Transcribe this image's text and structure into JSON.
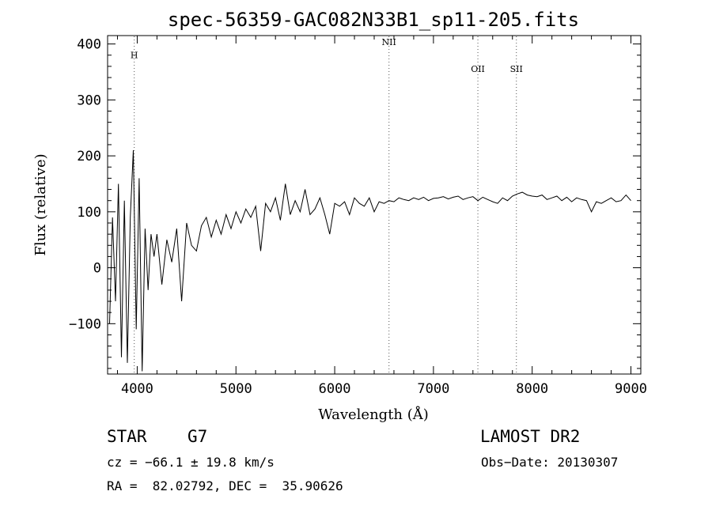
{
  "chart_data": {
    "type": "line",
    "title": "spec-56359-GAC082N33B1_sp11-205.fits",
    "xlabel": "Wavelength (Å)",
    "ylabel": "Flux (relative)",
    "xlim": [
      3700,
      9100
    ],
    "ylim": [
      -190,
      415
    ],
    "xticks": [
      4000,
      5000,
      6000,
      7000,
      8000,
      9000
    ],
    "yticks": [
      -100,
      0,
      100,
      200,
      300,
      400
    ],
    "ytick_labels": [
      "−100",
      "0",
      "100",
      "200",
      "300",
      "400"
    ],
    "grid": false,
    "series": [
      {
        "x": [
          3720,
          3750,
          3780,
          3810,
          3840,
          3870,
          3900,
          3930,
          3960,
          3990,
          4020,
          4050,
          4080,
          4110,
          4140,
          4170,
          4200,
          4250,
          4300,
          4350,
          4400,
          4450,
          4500,
          4550,
          4600,
          4650,
          4700,
          4750,
          4800,
          4850,
          4900,
          4950,
          5000,
          5050,
          5100,
          5150,
          5200,
          5250,
          5300,
          5350,
          5400,
          5450,
          5500,
          5550,
          5600,
          5650,
          5700,
          5750,
          5800,
          5850,
          5900,
          5950,
          6000,
          6050,
          6100,
          6150,
          6200,
          6250,
          6300,
          6350,
          6400,
          6450,
          6500,
          6550,
          6600,
          6650,
          6700,
          6750,
          6800,
          6850,
          6900,
          6950,
          7000,
          7050,
          7100,
          7150,
          7200,
          7250,
          7300,
          7350,
          7400,
          7450,
          7500,
          7550,
          7600,
          7650,
          7700,
          7750,
          7800,
          7850,
          7900,
          7950,
          8000,
          8050,
          8100,
          8150,
          8200,
          8250,
          8300,
          8350,
          8400,
          8450,
          8500,
          8550,
          8600,
          8650,
          8700,
          8750,
          8800,
          8850,
          8900,
          8950,
          9000
        ],
        "values": [
          -100,
          90,
          -60,
          150,
          -160,
          120,
          -170,
          90,
          210,
          -110,
          160,
          -185,
          70,
          -40,
          60,
          20,
          60,
          -30,
          50,
          10,
          70,
          -60,
          80,
          40,
          30,
          75,
          90,
          55,
          85,
          60,
          95,
          70,
          100,
          80,
          105,
          90,
          110,
          30,
          115,
          100,
          125,
          85,
          150,
          95,
          120,
          100,
          140,
          95,
          105,
          125,
          95,
          60,
          115,
          110,
          118,
          95,
          125,
          115,
          110,
          125,
          100,
          118,
          115,
          120,
          118,
          125,
          122,
          120,
          125,
          122,
          126,
          120,
          124,
          125,
          127,
          123,
          126,
          128,
          122,
          125,
          127,
          120,
          126,
          122,
          118,
          115,
          125,
          120,
          128,
          132,
          135,
          130,
          128,
          127,
          130,
          122,
          125,
          128,
          120,
          126,
          118,
          125,
          122,
          120,
          100,
          118,
          115,
          120,
          125,
          118,
          120,
          130,
          120
        ]
      }
    ],
    "annotations": [
      {
        "label": "H",
        "x": 3970,
        "y": 375
      },
      {
        "label": "NII",
        "x": 6550,
        "y": 398
      },
      {
        "label": "OII",
        "x": 7450,
        "y": 350
      },
      {
        "label": "SII",
        "x": 7840,
        "y": 350
      }
    ]
  },
  "info": {
    "object_class": "STAR",
    "subclass": "G7",
    "survey": "LAMOST DR2",
    "redshift": "cz = −66.1 ± 19.8 km/s",
    "obs_date": "Obs−Date: 20130307",
    "coords": "RA =  82.02792, DEC =  35.90626"
  }
}
